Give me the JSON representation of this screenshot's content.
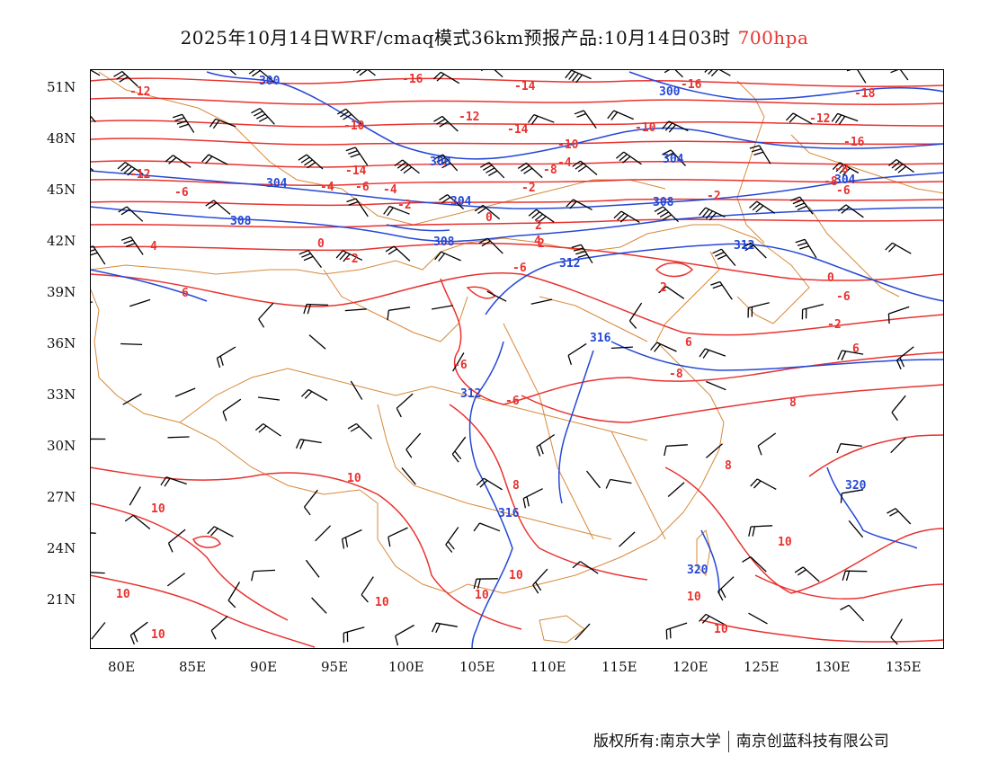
{
  "title": {
    "main": "2025年10月14日WRF/cmaq模式36km预报产品:10月14日03时",
    "level": "700hpa"
  },
  "colors": {
    "temperature": "#e8322f",
    "height": "#2548d6",
    "border": "#d7893a",
    "wind": "#000000"
  },
  "axes": {
    "lat_labels": [
      "51N",
      "48N",
      "45N",
      "42N",
      "39N",
      "36N",
      "33N",
      "30N",
      "27N",
      "24N",
      "21N"
    ],
    "lon_labels": [
      "80E",
      "85E",
      "90E",
      "95E",
      "100E",
      "105E",
      "110E",
      "115E",
      "120E",
      "125E",
      "130E",
      "135E"
    ]
  },
  "height_labels": [
    "300",
    "300",
    "300",
    "304",
    "304",
    "304",
    "304",
    "308",
    "308",
    "308",
    "312",
    "312",
    "312",
    "316",
    "316",
    "320",
    "320"
  ],
  "temp_labels": [
    "-12",
    "-16",
    "-14",
    "-16",
    "-18",
    "-12",
    "-10",
    "-14",
    "-10",
    "-12",
    "-16",
    "-14",
    "-12",
    "-10",
    "-8",
    "-6",
    "-4",
    "-8",
    "-6",
    "-4",
    "-2",
    "-8",
    "-6",
    "-4",
    "-2",
    "0",
    "-2",
    "2",
    "0",
    "2",
    "4",
    "-6",
    "-2",
    "0",
    "6",
    "-6",
    "2",
    "-2",
    "4",
    "6",
    "-6",
    "-8",
    "6",
    "8",
    "-6",
    "8",
    "10",
    "10",
    "8",
    "10",
    "10",
    "10",
    "10",
    "10",
    "10",
    "10",
    "10"
  ],
  "footer": {
    "left": "版权所有:南京大学",
    "right": "南京创蓝科技有限公司"
  }
}
